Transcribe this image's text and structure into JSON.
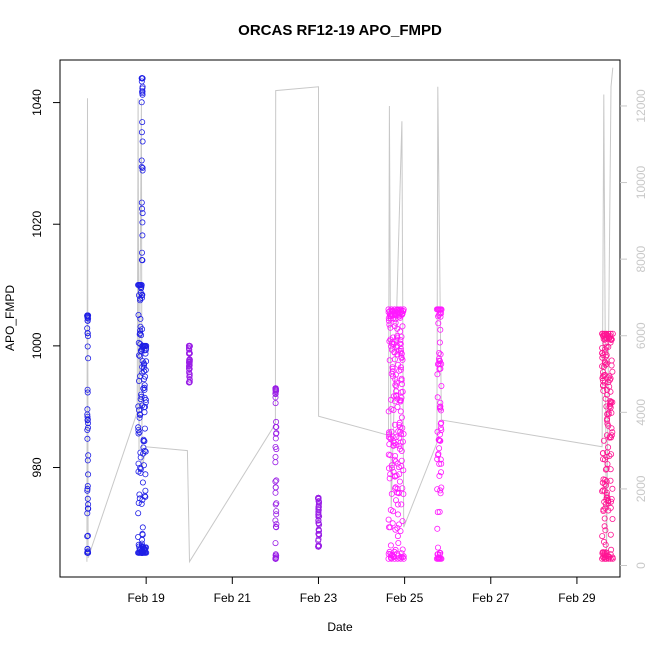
{
  "chart_data": {
    "type": "scatter",
    "title": "ORCAS RF12-19 APO_FMPD",
    "xlabel": "Date",
    "ylabel": "APO_FMPD",
    "x_range": [
      "2016-02-17T00:00",
      "2016-03-01T00:00"
    ],
    "x_ticks": [
      {
        "date": "2016-02-19",
        "label": "Feb 19"
      },
      {
        "date": "2016-02-21",
        "label": "Feb 21"
      },
      {
        "date": "2016-02-23",
        "label": "Feb 23"
      },
      {
        "date": "2016-02-25",
        "label": "Feb 25"
      },
      {
        "date": "2016-02-27",
        "label": "Feb 27"
      },
      {
        "date": "2016-02-29",
        "label": "Feb 29"
      }
    ],
    "ylim": [
      962,
      1047
    ],
    "y_ticks": [
      980,
      1000,
      1020,
      1040
    ],
    "y2lim": [
      -300,
      13200
    ],
    "y2_ticks": [
      0,
      2000,
      4000,
      6000,
      8000,
      10000,
      12000
    ],
    "grid": false,
    "legend": "none",
    "series": [
      {
        "color": "#1f1fe6",
        "flights": [
          {
            "start": "2016-02-17T15:10",
            "end": "2016-02-17T15:40",
            "min": 966,
            "max": 1005
          },
          {
            "start": "2016-02-18T19:30",
            "end": "2016-02-18T21:30",
            "min": 966,
            "max": 1010
          },
          {
            "start": "2016-02-18T21:30",
            "end": "2016-02-18T21:55",
            "min": 966,
            "max": 1044
          },
          {
            "start": "2016-02-18T21:55",
            "end": "2016-02-19T00:00",
            "min": 966,
            "max": 1000
          }
        ]
      },
      {
        "color": "#9a1fe6",
        "flights": [
          {
            "start": "2016-02-19T23:50",
            "end": "2016-02-20T00:10",
            "min": 994,
            "max": 1000
          },
          {
            "start": "2016-02-22T00:00",
            "end": "2016-02-22T00:15",
            "min": 965,
            "max": 993
          },
          {
            "start": "2016-02-22T23:50",
            "end": "2016-02-23T00:05",
            "min": 967,
            "max": 975
          }
        ]
      },
      {
        "color": "#ff19ff",
        "flights": [
          {
            "start": "2016-02-24T15:00",
            "end": "2016-02-24T23:30",
            "min": 965,
            "max": 1006
          },
          {
            "start": "2016-02-25T18:00",
            "end": "2016-02-25T20:30",
            "min": 965,
            "max": 1006
          }
        ]
      },
      {
        "color": "#ff1493",
        "flights": [
          {
            "start": "2016-02-29T14:00",
            "end": "2016-02-29T20:00",
            "min": 965,
            "max": 1002
          }
        ]
      }
    ],
    "altitude_trace": {
      "color": "#c8c8c8",
      "axis": "right",
      "points": [
        [
          "2016-02-17T15:00",
          100
        ],
        [
          "2016-02-17T15:20",
          12200
        ],
        [
          "2016-02-17T15:40",
          200
        ],
        [
          "2016-02-18T19:00",
          4000
        ],
        [
          "2016-02-18T19:30",
          12200
        ],
        [
          "2016-02-18T20:00",
          3000
        ],
        [
          "2016-02-18T21:20",
          12100
        ],
        [
          "2016-02-18T21:40",
          2500
        ],
        [
          "2016-02-18T23:50",
          3100
        ],
        [
          "2016-02-19T23:00",
          3000
        ],
        [
          "2016-02-20T00:10",
          100
        ],
        [
          "2016-02-22T00:00",
          3700
        ],
        [
          "2016-02-22T00:10",
          12400
        ],
        [
          "2016-02-23T00:00",
          12500
        ],
        [
          "2016-02-23T00:05",
          3900
        ],
        [
          "2016-02-24T15:00",
          3400
        ],
        [
          "2016-02-24T15:30",
          12000
        ],
        [
          "2016-02-24T16:30",
          1500
        ],
        [
          "2016-02-24T22:30",
          11600
        ],
        [
          "2016-02-24T23:30",
          1000
        ],
        [
          "2016-02-25T18:00",
          3200
        ],
        [
          "2016-02-25T18:30",
          12500
        ],
        [
          "2016-02-25T20:30",
          3800
        ],
        [
          "2016-02-29T14:00",
          3100
        ],
        [
          "2016-02-29T15:00",
          12300
        ],
        [
          "2016-02-29T16:30",
          200
        ],
        [
          "2016-02-29T19:00",
          12500
        ],
        [
          "2016-02-29T20:00",
          13000
        ]
      ]
    }
  }
}
